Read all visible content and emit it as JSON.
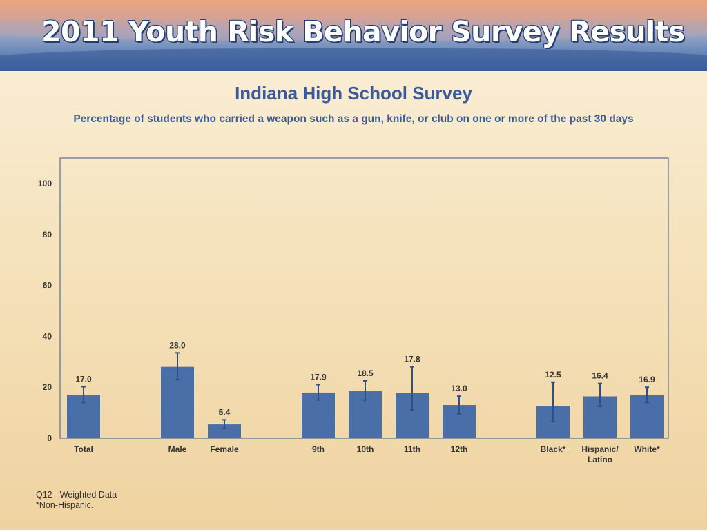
{
  "banner": {
    "title": "2011 Youth Risk Behavior Survey Results"
  },
  "chart_data": {
    "type": "bar",
    "title": "Indiana High School Survey",
    "subtitle": "Percentage of students who carried a weapon such as a gun, knife, or club on one or more of the past 30 days",
    "xlabel": "",
    "ylabel": "",
    "ylim": [
      0,
      100
    ],
    "yticks": [
      0,
      20,
      40,
      60,
      80,
      100
    ],
    "grid": false,
    "bar_color": "#4a6ea8",
    "error_color": "#2f4f86",
    "groups": [
      {
        "bars": [
          {
            "label": "Total",
            "value": 17.0,
            "value_label": "17.0",
            "err_low": 14.0,
            "err_high": 20.2
          }
        ]
      },
      {
        "bars": [
          {
            "label": "Male",
            "value": 28.0,
            "value_label": "28.0",
            "err_low": 23.0,
            "err_high": 33.5
          },
          {
            "label": "Female",
            "value": 5.4,
            "value_label": "5.4",
            "err_low": 3.8,
            "err_high": 7.2
          }
        ]
      },
      {
        "bars": [
          {
            "label": "9th",
            "value": 17.9,
            "value_label": "17.9",
            "err_low": 15.0,
            "err_high": 21.0
          },
          {
            "label": "10th",
            "value": 18.5,
            "value_label": "18.5",
            "err_low": 15.0,
            "err_high": 22.5
          },
          {
            "label": "11th",
            "value": 17.8,
            "value_label": "17.8",
            "err_low": 11.0,
            "err_high": 28.0
          },
          {
            "label": "12th",
            "value": 13.0,
            "value_label": "13.0",
            "err_low": 9.5,
            "err_high": 16.5
          }
        ]
      },
      {
        "bars": [
          {
            "label": "Black*",
            "value": 12.5,
            "value_label": "12.5",
            "err_low": 6.5,
            "err_high": 22.0
          },
          {
            "label": "Hispanic/ Latino",
            "label_lines": [
              "Hispanic/",
              "Latino"
            ],
            "value": 16.4,
            "value_label": "16.4",
            "err_low": 12.5,
            "err_high": 21.5
          },
          {
            "label": "White*",
            "value": 16.9,
            "value_label": "16.9",
            "err_low": 14.0,
            "err_high": 20.0
          }
        ]
      }
    ]
  },
  "footnote": {
    "line1": "Q12 - Weighted Data",
    "line2": "*Non-Hispanic."
  }
}
